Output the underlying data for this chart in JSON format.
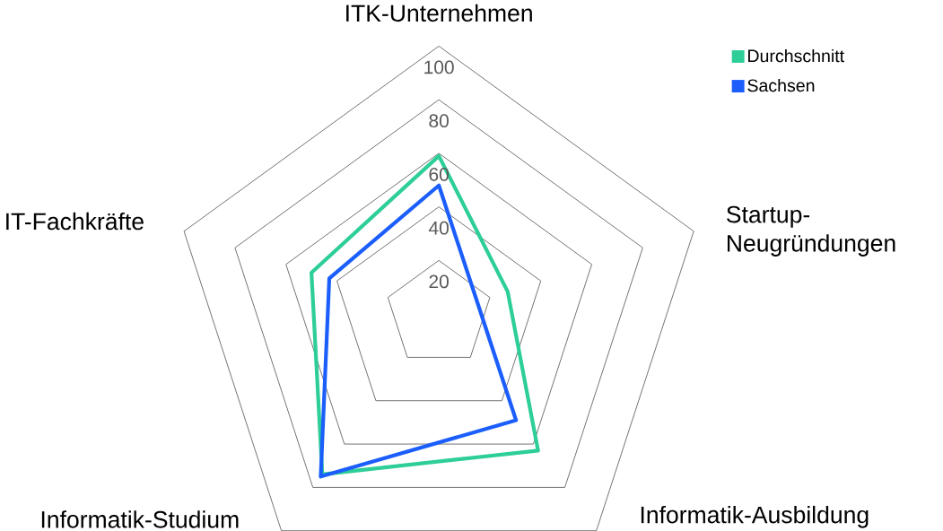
{
  "chart_data": {
    "type": "radar",
    "categories": [
      "ITK-Unternehmen",
      "Startup-Neugründungen",
      "Informatik-Ausbildung",
      "Informatik-Studium",
      "IT-Fachkräfte"
    ],
    "series": [
      {
        "name": "Durchschnitt",
        "color": "#2dce98",
        "values": [
          59,
          27,
          63,
          74,
          50
        ]
      },
      {
        "name": "Sachsen",
        "color": "#1b5efc",
        "values": [
          48,
          15,
          49,
          75,
          43
        ]
      }
    ],
    "ylim": [
      0,
      100
    ],
    "yticks": [
      20,
      40,
      60,
      80,
      100
    ],
    "grid": true,
    "legend": "top right"
  }
}
